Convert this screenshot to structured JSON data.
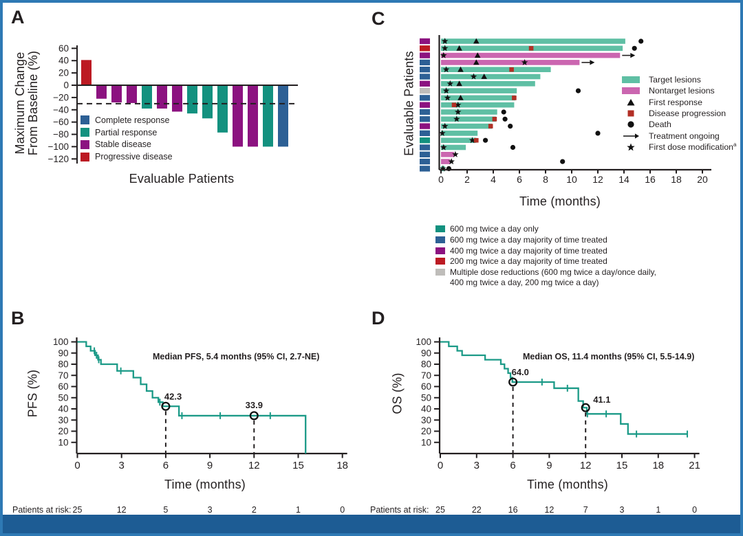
{
  "colors": {
    "frame": "#2e79b4",
    "bottom_bar": "#1d5c94",
    "text": "#231f20",
    "teal": "#13917f",
    "teal_light": "#5fbfa4",
    "magenta": "#cb66b0",
    "purple": "#8c1280",
    "red": "#bc1a23",
    "blue": "#2d6095",
    "gray": "#bfbdba",
    "progression": "#b22f25",
    "curve": "#1b9a87"
  },
  "panels": {
    "a": {
      "label": "A",
      "xlabel": "Evaluable Patients",
      "ylabel_line1": "Maximum Change",
      "ylabel_line2": "From Baseline (%)"
    },
    "b": {
      "label": "B",
      "xlabel": "Time (months)",
      "ylabel": "PFS (%)",
      "annotation": "Median PFS, 5.4 months (95% CI, 2.7-NE)",
      "at_risk_label": "Patients at risk:"
    },
    "c": {
      "label": "C",
      "xlabel": "Time (months)",
      "ylabel": "Evaluable Patients"
    },
    "d": {
      "label": "D",
      "xlabel": "Time (months)",
      "ylabel": "OS (%)",
      "annotation": "Median OS, 11.4 months (95% CI, 5.5-14.9)",
      "at_risk_label": "Patients at risk:"
    }
  },
  "chart_data": [
    {
      "id": "waterfall",
      "type": "bar",
      "panel": "A",
      "xlabel": "Evaluable Patients",
      "ylabel": "Maximum Change From Baseline (%)",
      "ylim": [
        -120,
        60
      ],
      "yticks": [
        60,
        40,
        20,
        0,
        -20,
        -40,
        -60,
        -80,
        -100,
        -120
      ],
      "reference_line": -30,
      "values": [
        41,
        -22,
        -28,
        -29,
        -38,
        -38,
        -43,
        -46,
        -54,
        -77,
        -100,
        -100,
        -100,
        -100
      ],
      "responses": [
        "Progressive disease",
        "Stable disease",
        "Stable disease",
        "Stable disease",
        "Partial response",
        "Stable disease",
        "Stable disease",
        "Partial response",
        "Partial response",
        "Partial response",
        "Stable disease",
        "Stable disease",
        "Partial response",
        "Complete response"
      ],
      "legend": [
        {
          "label": "Complete response",
          "color_key": "blue"
        },
        {
          "label": "Partial response",
          "color_key": "teal"
        },
        {
          "label": "Stable disease",
          "color_key": "purple"
        },
        {
          "label": "Progressive disease",
          "color_key": "red"
        }
      ]
    },
    {
      "id": "swimmer",
      "type": "swimmer",
      "panel": "C",
      "xlabel": "Time (months)",
      "ylabel": "Evaluable Patients",
      "xticks": [
        0,
        2,
        4,
        6,
        8,
        10,
        12,
        14,
        16,
        18,
        20
      ],
      "rows": [
        {
          "dose": "400",
          "bar": "target",
          "length": 14.1,
          "dose_mod": [
            0.3
          ],
          "response": [
            2.7
          ],
          "progression": [],
          "death": [
            15.3
          ],
          "ongoing": false
        },
        {
          "dose": "200",
          "bar": "target",
          "length": 13.9,
          "dose_mod": [
            0.3
          ],
          "response": [
            1.4
          ],
          "progression": [
            6.9
          ],
          "death": [
            14.8
          ],
          "ongoing": false
        },
        {
          "dose": "400",
          "bar": "nontarget",
          "length": 13.7,
          "dose_mod": [
            0.2
          ],
          "response": [
            2.8
          ],
          "progression": [],
          "death": [],
          "ongoing": true
        },
        {
          "dose": "600maj",
          "bar": "nontarget",
          "length": 10.6,
          "dose_mod": [
            6.4
          ],
          "response": [
            2.7
          ],
          "progression": [],
          "death": [],
          "ongoing": true
        },
        {
          "dose": "600maj",
          "bar": "target",
          "length": 8.4,
          "dose_mod": [
            0.4
          ],
          "response": [
            1.5
          ],
          "progression": [
            5.4
          ],
          "death": [],
          "ongoing": false
        },
        {
          "dose": "600maj",
          "bar": "target",
          "length": 7.6,
          "dose_mod": [
            2.5
          ],
          "response": [
            3.3
          ],
          "progression": [],
          "death": [],
          "ongoing": false
        },
        {
          "dose": "400",
          "bar": "target",
          "length": 7.2,
          "dose_mod": [
            0.7
          ],
          "response": [
            1.4
          ],
          "progression": [],
          "death": [],
          "ongoing": false
        },
        {
          "dose": "multi",
          "bar": "target",
          "length": 5.8,
          "dose_mod": [
            0.4
          ],
          "response": [],
          "progression": [],
          "death": [
            10.5
          ],
          "ongoing": false
        },
        {
          "dose": "600maj",
          "bar": "target",
          "length": 5.7,
          "dose_mod": [
            0.5
          ],
          "response": [
            1.5
          ],
          "progression": [
            5.6
          ],
          "death": [],
          "ongoing": false
        },
        {
          "dose": "400",
          "bar": "target",
          "length": 5.6,
          "dose_mod": [
            1.3
          ],
          "response": [],
          "progression": [
            1.0
          ],
          "death": [],
          "ongoing": false
        },
        {
          "dose": "600maj",
          "bar": "target",
          "length": 4.3,
          "dose_mod": [
            1.3
          ],
          "response": [],
          "progression": [],
          "death": [
            4.8
          ],
          "ongoing": false
        },
        {
          "dose": "600maj",
          "bar": "target",
          "length": 4.2,
          "dose_mod": [
            1.2
          ],
          "response": [],
          "progression": [
            4.1
          ],
          "death": [
            4.9
          ],
          "ongoing": false
        },
        {
          "dose": "400",
          "bar": "target",
          "length": 3.9,
          "dose_mod": [
            0.3
          ],
          "response": [],
          "progression": [
            3.8
          ],
          "death": [
            5.3
          ],
          "ongoing": false
        },
        {
          "dose": "600maj",
          "bar": "target",
          "length": 2.8,
          "dose_mod": [
            0.1
          ],
          "response": [],
          "progression": [],
          "death": [
            12.0
          ],
          "ongoing": false
        },
        {
          "dose": "600only",
          "bar": "target",
          "length": 2.7,
          "dose_mod": [
            2.4
          ],
          "response": [],
          "progression": [
            2.7
          ],
          "death": [
            3.4
          ],
          "ongoing": false
        },
        {
          "dose": "600maj",
          "bar": "target",
          "length": 1.9,
          "dose_mod": [
            0.2
          ],
          "response": [],
          "progression": [],
          "death": [
            5.5
          ],
          "ongoing": false
        },
        {
          "dose": "600maj",
          "bar": "nontarget",
          "length": 1.0,
          "dose_mod": [
            1.1
          ],
          "response": [],
          "progression": [],
          "death": [],
          "ongoing": false
        },
        {
          "dose": "600maj",
          "bar": "nontarget",
          "length": 0.7,
          "dose_mod": [
            0.8
          ],
          "response": [],
          "progression": [],
          "death": [
            9.3
          ],
          "ongoing": false
        },
        {
          "dose": "600maj",
          "bar": "target",
          "length": 0.3,
          "dose_mod": [
            0.15
          ],
          "response": [],
          "progression": [],
          "death": [
            0.6
          ],
          "ongoing": false
        }
      ],
      "legend": [
        {
          "glyph": "swatch-target",
          "label": "Target lesions"
        },
        {
          "glyph": "swatch-nontarget",
          "label": "Nontarget lesions"
        },
        {
          "glyph": "triangle",
          "label": "First response"
        },
        {
          "glyph": "square",
          "label": "Disease progression"
        },
        {
          "glyph": "circle",
          "label": "Death"
        },
        {
          "glyph": "arrow",
          "label": "Treatment ongoing"
        },
        {
          "glyph": "star",
          "label": "First dose modification",
          "sup": "a"
        }
      ],
      "dose_legend": [
        {
          "key": "600only",
          "label": "600 mg twice a day only"
        },
        {
          "key": "600maj",
          "label": "600 mg twice a day majority of time treated"
        },
        {
          "key": "400",
          "label": "400 mg twice a day majority of time treated"
        },
        {
          "key": "200",
          "label": "200 mg twice a day majority of time treated"
        },
        {
          "key": "multi",
          "label": "Multiple dose reductions (600 mg twice a day/once daily,",
          "label2": "400 mg twice a day, 200 mg twice a day)"
        }
      ]
    },
    {
      "id": "pfs",
      "type": "line",
      "panel": "B",
      "title": "Kaplan-Meier progression-free survival",
      "xlabel": "Time (months)",
      "ylabel": "PFS (%)",
      "annotation": "Median PFS, 5.4 months (95% CI, 2.7-NE)",
      "xticks": [
        0,
        3,
        6,
        9,
        12,
        15,
        18
      ],
      "yticks": [
        100,
        90,
        80,
        70,
        60,
        50,
        40,
        30,
        20,
        10
      ],
      "ylim": [
        0,
        100
      ],
      "points": [
        [
          0,
          100
        ],
        [
          0.6,
          96
        ],
        [
          0.9,
          92
        ],
        [
          1.2,
          88
        ],
        [
          1.4,
          84
        ],
        [
          1.6,
          80
        ],
        [
          2.7,
          74
        ],
        [
          3.8,
          68
        ],
        [
          4.3,
          62
        ],
        [
          4.7,
          56
        ],
        [
          5.1,
          50
        ],
        [
          5.5,
          46
        ],
        [
          5.8,
          42.3
        ],
        [
          6.9,
          33.9
        ],
        [
          15.5,
          0
        ]
      ],
      "censors": [
        [
          1.15,
          92
        ],
        [
          1.3,
          88
        ],
        [
          1.45,
          84
        ],
        [
          2.95,
          74
        ],
        [
          5.6,
          46
        ],
        [
          7.1,
          33.9
        ],
        [
          9.7,
          33.9
        ],
        [
          13.1,
          33.9
        ]
      ],
      "marked": [
        {
          "x": 6,
          "y": 42.3,
          "label": "42.3"
        },
        {
          "x": 12,
          "y": 33.9,
          "label": "33.9"
        }
      ],
      "at_risk": [
        25,
        12,
        5,
        3,
        2,
        1,
        0
      ]
    },
    {
      "id": "os",
      "type": "line",
      "panel": "D",
      "title": "Kaplan-Meier overall survival",
      "xlabel": "Time (months)",
      "ylabel": "OS (%)",
      "annotation": "Median OS, 11.4 months (95% CI, 5.5-14.9)",
      "xticks": [
        0,
        3,
        6,
        9,
        12,
        15,
        18,
        21
      ],
      "yticks": [
        100,
        90,
        80,
        70,
        60,
        50,
        40,
        30,
        20,
        10
      ],
      "ylim": [
        0,
        100
      ],
      "points": [
        [
          0,
          100
        ],
        [
          0.7,
          96
        ],
        [
          1.4,
          92
        ],
        [
          1.8,
          88
        ],
        [
          3.7,
          84
        ],
        [
          5.0,
          80
        ],
        [
          5.3,
          76
        ],
        [
          5.6,
          72
        ],
        [
          5.8,
          68
        ],
        [
          5.95,
          64
        ],
        [
          9.4,
          58.5
        ],
        [
          11.4,
          47
        ],
        [
          11.8,
          41.1
        ],
        [
          12.1,
          35.5
        ],
        [
          14.9,
          26.5
        ],
        [
          15.5,
          17.5
        ]
      ],
      "end_x": 20.4,
      "censors": [
        [
          8.4,
          64
        ],
        [
          10.5,
          58.5
        ],
        [
          12.15,
          35.5
        ],
        [
          13.7,
          35.5
        ],
        [
          16.2,
          17.5
        ],
        [
          20.4,
          17.5
        ]
      ],
      "marked": [
        {
          "x": 6,
          "y": 64.0,
          "label": "64.0"
        },
        {
          "x": 12,
          "y": 41.1,
          "label": "41.1"
        }
      ],
      "at_risk": [
        25,
        22,
        16,
        12,
        7,
        3,
        1,
        0
      ]
    }
  ]
}
